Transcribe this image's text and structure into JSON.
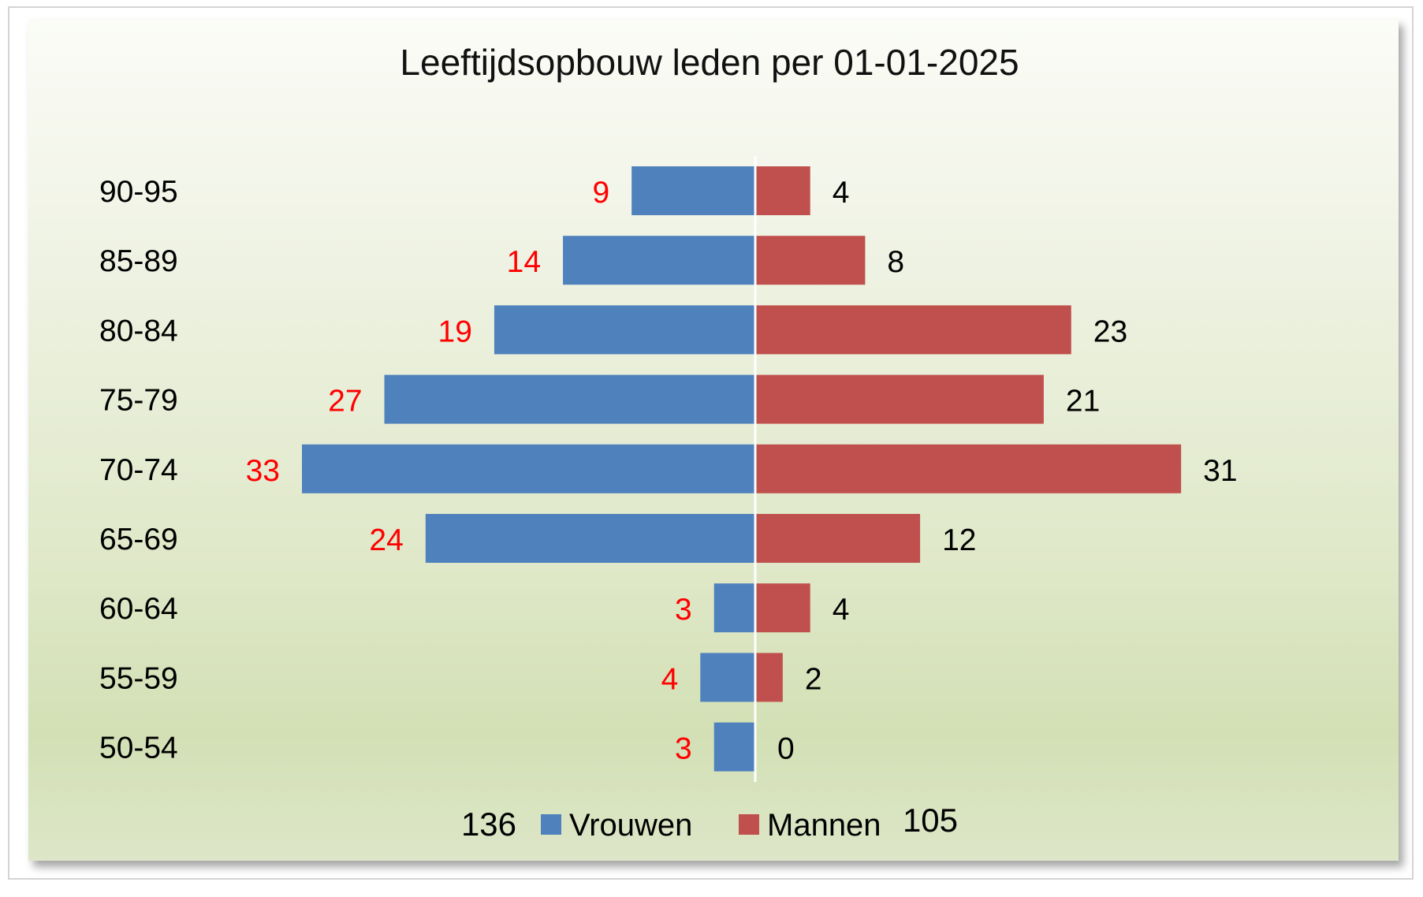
{
  "chart_data": {
    "type": "bar",
    "orientation": "horizontal-diverging",
    "title": "Leeftijdsopbouw leden per 01-01-2025",
    "categories": [
      "90-95",
      "85-89",
      "80-84",
      "75-79",
      "70-74",
      "65-69",
      "60-64",
      "55-59",
      "50-54"
    ],
    "series": [
      {
        "name": "Vrouwen",
        "values": [
          9,
          14,
          19,
          27,
          33,
          24,
          3,
          4,
          3
        ],
        "color": "#4f81bd",
        "label_color": "#ff0000",
        "total": "136"
      },
      {
        "name": "Mannen",
        "values": [
          4,
          8,
          23,
          21,
          31,
          12,
          4,
          2,
          0
        ],
        "color": "#c0504d",
        "label_color": "#000000",
        "total": "105"
      }
    ],
    "xlim": [
      -33,
      33
    ],
    "grid": false,
    "legend": "bottom"
  }
}
